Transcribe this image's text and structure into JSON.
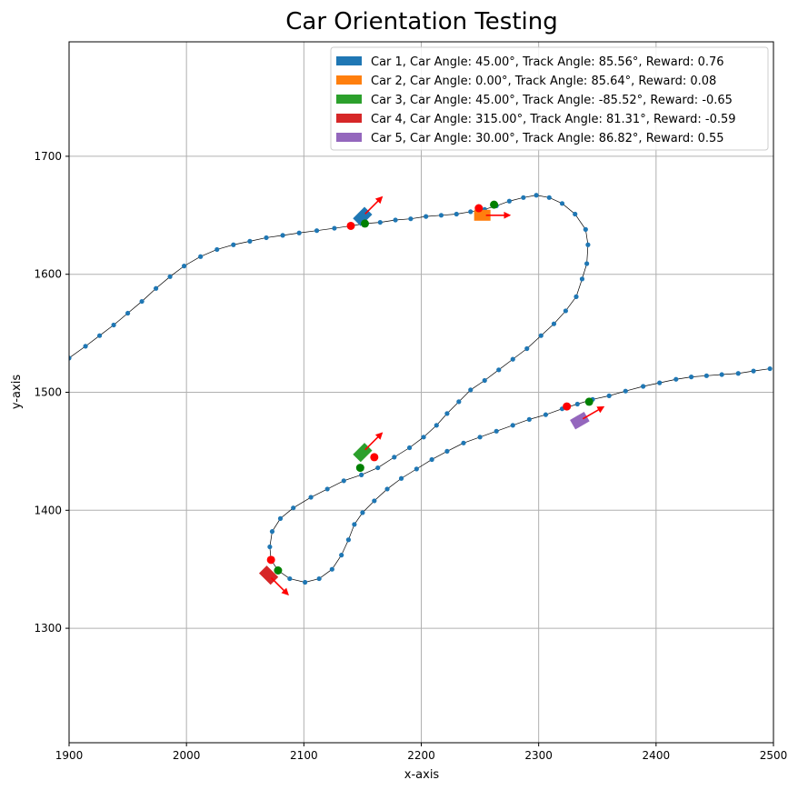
{
  "chart_data": {
    "type": "scatter",
    "title": "Car Orientation Testing",
    "xlabel": "x-axis",
    "ylabel": "y-axis",
    "xlim": [
      1900,
      2500
    ],
    "ylim": [
      1203,
      1797
    ],
    "xticks": [
      1900,
      2000,
      2100,
      2200,
      2300,
      2400,
      2500
    ],
    "yticks": [
      1300,
      1400,
      1500,
      1600,
      1700
    ],
    "grid": true,
    "legend_position": "top-right",
    "track_color": "#1f77b4",
    "track_points": [
      [
        1900,
        1529
      ],
      [
        1914,
        1539
      ],
      [
        1926,
        1548
      ],
      [
        1938,
        1557
      ],
      [
        1950,
        1567
      ],
      [
        1962,
        1577
      ],
      [
        1974,
        1588
      ],
      [
        1986,
        1598
      ],
      [
        1998,
        1607
      ],
      [
        2012,
        1615
      ],
      [
        2026,
        1621
      ],
      [
        2040,
        1625
      ],
      [
        2054,
        1628
      ],
      [
        2068,
        1631
      ],
      [
        2082,
        1633
      ],
      [
        2096,
        1635
      ],
      [
        2111,
        1637
      ],
      [
        2126,
        1639
      ],
      [
        2140,
        1641
      ],
      [
        2152,
        1643
      ],
      [
        2165,
        1644
      ],
      [
        2178,
        1646
      ],
      [
        2191,
        1647
      ],
      [
        2204,
        1649
      ],
      [
        2217,
        1650
      ],
      [
        2230,
        1651
      ],
      [
        2242,
        1653
      ],
      [
        2254,
        1655
      ],
      [
        2264,
        1658
      ],
      [
        2275,
        1662
      ],
      [
        2287,
        1665
      ],
      [
        2298,
        1667
      ],
      [
        2309,
        1665
      ],
      [
        2320,
        1660
      ],
      [
        2331,
        1651
      ],
      [
        2340,
        1638
      ],
      [
        2342,
        1625
      ],
      [
        2341,
        1609
      ],
      [
        2337,
        1596
      ],
      [
        2332,
        1581
      ],
      [
        2323,
        1569
      ],
      [
        2313,
        1558
      ],
      [
        2302,
        1548
      ],
      [
        2290,
        1537
      ],
      [
        2278,
        1528
      ],
      [
        2266,
        1519
      ],
      [
        2254,
        1510
      ],
      [
        2242,
        1502
      ],
      [
        2232,
        1492
      ],
      [
        2222,
        1482
      ],
      [
        2213,
        1472
      ],
      [
        2202,
        1462
      ],
      [
        2190,
        1453
      ],
      [
        2177,
        1445
      ],
      [
        2163,
        1436
      ],
      [
        2149,
        1430
      ],
      [
        2134,
        1425
      ],
      [
        2120,
        1418
      ],
      [
        2106,
        1411
      ],
      [
        2091,
        1402
      ],
      [
        2080,
        1393
      ],
      [
        2073,
        1382
      ],
      [
        2071,
        1369
      ],
      [
        2072,
        1358
      ],
      [
        2078,
        1349
      ],
      [
        2088,
        1342
      ],
      [
        2101,
        1339
      ],
      [
        2113,
        1342
      ],
      [
        2124,
        1350
      ],
      [
        2132,
        1362
      ],
      [
        2138,
        1375
      ],
      [
        2143,
        1388
      ],
      [
        2150,
        1398
      ],
      [
        2160,
        1408
      ],
      [
        2171,
        1418
      ],
      [
        2183,
        1427
      ],
      [
        2196,
        1435
      ],
      [
        2209,
        1443
      ],
      [
        2222,
        1450
      ],
      [
        2236,
        1457
      ],
      [
        2250,
        1462
      ],
      [
        2264,
        1467
      ],
      [
        2278,
        1472
      ],
      [
        2292,
        1477
      ],
      [
        2306,
        1481
      ],
      [
        2320,
        1486
      ],
      [
        2333,
        1490
      ],
      [
        2346,
        1494
      ],
      [
        2360,
        1497
      ],
      [
        2374,
        1501
      ],
      [
        2389,
        1505
      ],
      [
        2403,
        1508
      ],
      [
        2417,
        1511
      ],
      [
        2430,
        1513
      ],
      [
        2443,
        1514
      ],
      [
        2456,
        1515
      ],
      [
        2470,
        1516
      ],
      [
        2483,
        1518
      ],
      [
        2497,
        1520
      ]
    ],
    "cars": [
      {
        "id": 1,
        "legend": "Car 1, Car Angle: 45.00°, Track Angle: 85.56°, Reward: 0.76",
        "color": "#1f77b4",
        "x": 2150,
        "y": 1649,
        "car_angle": 45.0,
        "track_angle": 85.56,
        "reward": 0.76,
        "red_point": [
          2140,
          1641
        ],
        "green_point": [
          2152,
          1643
        ]
      },
      {
        "id": 2,
        "legend": "Car 2, Car Angle: 0.00°, Track Angle: 85.64°, Reward: 0.08",
        "color": "#ff7f0e",
        "x": 2252,
        "y": 1650,
        "car_angle": 0.0,
        "track_angle": 85.64,
        "reward": 0.08,
        "red_point": [
          2249,
          1656
        ],
        "green_point": [
          2262,
          1659
        ]
      },
      {
        "id": 3,
        "legend": "Car 3, Car Angle: 45.00°, Track Angle: -85.52°, Reward: -0.65",
        "color": "#2ca02c",
        "x": 2150,
        "y": 1449,
        "car_angle": 45.0,
        "track_angle": -85.52,
        "reward": -0.65,
        "red_point": [
          2160,
          1445
        ],
        "green_point": [
          2148,
          1436
        ]
      },
      {
        "id": 4,
        "legend": "Car 4, Car Angle: 315.00°, Track Angle: 81.31°, Reward: -0.59",
        "color": "#d62728",
        "x": 2070,
        "y": 1345,
        "car_angle": 315.0,
        "track_angle": 81.31,
        "reward": -0.59,
        "red_point": [
          2072,
          1358
        ],
        "green_point": [
          2078,
          1349
        ]
      },
      {
        "id": 5,
        "legend": "Car 5, Car Angle: 30.00°, Track Angle: 86.82°, Reward: 0.55",
        "color": "#9467bd",
        "x": 2335,
        "y": 1476,
        "car_angle": 30.0,
        "track_angle": 86.82,
        "reward": 0.55,
        "red_point": [
          2324,
          1488
        ],
        "green_point": [
          2343,
          1492
        ]
      }
    ],
    "arrow_color": "#ff0000",
    "red_point_color": "#ff0000",
    "green_point_color": "#008000"
  }
}
